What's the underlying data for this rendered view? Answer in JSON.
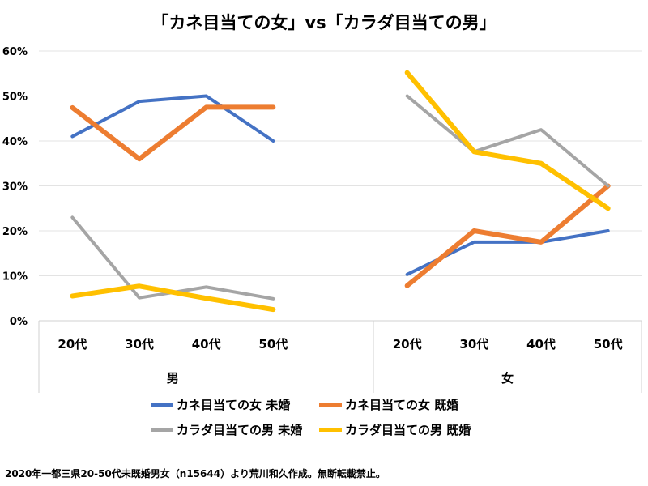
{
  "chart_data": {
    "type": "line",
    "title": "「カネ目当ての女」vs「カラダ目当ての男」",
    "groups": [
      {
        "label": "男",
        "categories": [
          "20代",
          "30代",
          "40代",
          "50代"
        ]
      },
      {
        "label": "女",
        "categories": [
          "20代",
          "30代",
          "40代",
          "50代"
        ]
      }
    ],
    "ylim": [
      0,
      60
    ],
    "yticks": [
      "0%",
      "10%",
      "20%",
      "30%",
      "40%",
      "50%",
      "60%"
    ],
    "grid": true,
    "legend_position": "bottom",
    "series": [
      {
        "name": "カネ目当ての女 未婚",
        "color": "#4472C4",
        "male": [
          41.0,
          48.8,
          50.0,
          40.0
        ],
        "female": [
          10.3,
          17.5,
          17.5,
          20.0
        ]
      },
      {
        "name": "カネ目当ての女 既婚",
        "color": "#ED7D31",
        "male": [
          47.4,
          36.0,
          47.5,
          47.5
        ],
        "female": [
          7.8,
          20.0,
          17.5,
          30.0
        ]
      },
      {
        "name": "カラダ目当ての男 未婚",
        "color": "#A5A5A5",
        "male": [
          23.0,
          5.1,
          7.5,
          4.9
        ],
        "female": [
          50.0,
          37.6,
          42.5,
          30.0
        ]
      },
      {
        "name": "カラダ目当ての男 既婚",
        "color": "#FFC000",
        "male": [
          5.5,
          7.7,
          5.0,
          2.5
        ],
        "female": [
          55.2,
          37.6,
          35.0,
          25.0
        ]
      }
    ]
  },
  "footnote": "2020年一都三県20-50代未既婚男女（n15644）より荒川和久作成。無断転載禁止。"
}
